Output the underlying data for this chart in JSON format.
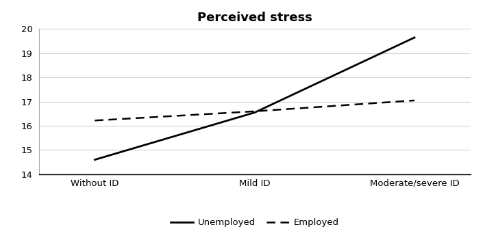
{
  "title": "Perceived stress",
  "categories": [
    "Without ID",
    "Mild ID",
    "Moderate/severe ID"
  ],
  "unemployed_values": [
    14.6,
    16.55,
    19.65
  ],
  "employed_values": [
    16.22,
    16.6,
    17.05
  ],
  "ylim": [
    14,
    20
  ],
  "yticks": [
    14,
    15,
    16,
    17,
    18,
    19,
    20
  ],
  "line_color": "#000000",
  "background_color": "#ffffff",
  "title_fontsize": 13,
  "legend_labels": [
    "Unemployed",
    "Employed"
  ],
  "grid_color": "#d0d0d0"
}
